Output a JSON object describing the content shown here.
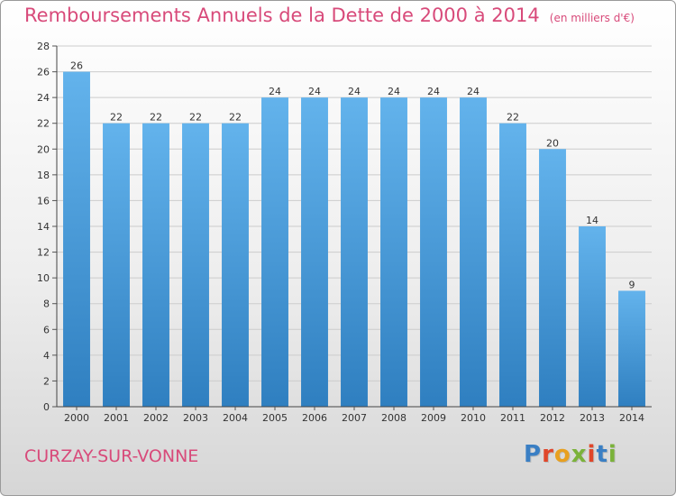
{
  "header": {
    "title": "Remboursements Annuels de la Dette de 2000 à 2014",
    "subtitle": "(en milliers d'€)"
  },
  "footer": {
    "commune": "CURZAY-SUR-VONNE",
    "logo": {
      "text": "Proxiti",
      "colors": [
        "#3a7fc4",
        "#e0462a",
        "#e8a020",
        "#7bb23a",
        "#e0462a",
        "#3a7fc4",
        "#7bb23a"
      ]
    }
  },
  "colors": {
    "bar_light": "#63b3ec",
    "bar_dark": "#2f7fc0",
    "title": "#d84a7a",
    "grid": "#cccccc"
  },
  "chart_data": {
    "type": "bar",
    "title": "Remboursements Annuels de la Dette de 2000 à 2014",
    "categories": [
      "2000",
      "2001",
      "2002",
      "2003",
      "2004",
      "2005",
      "2006",
      "2007",
      "2008",
      "2009",
      "2010",
      "2011",
      "2012",
      "2013",
      "2014"
    ],
    "values": [
      26,
      22,
      22,
      22,
      22,
      24,
      24,
      24,
      24,
      24,
      24,
      22,
      20,
      14,
      9
    ],
    "data_labels": [
      "26",
      "22",
      "22",
      "22",
      "22",
      "24",
      "24",
      "24",
      "24",
      "24",
      "24",
      "22",
      "20",
      "14",
      "9"
    ],
    "ylim": [
      0,
      28
    ],
    "yticks": [
      0,
      2,
      4,
      6,
      8,
      10,
      12,
      14,
      16,
      18,
      20,
      22,
      24,
      26,
      28
    ],
    "ytick_labels": [
      "0",
      "2",
      "4",
      "6",
      "8",
      "10",
      "12",
      "14",
      "16",
      "18",
      "20",
      "22",
      "24",
      "26",
      "28"
    ],
    "grid": true,
    "legend": false
  }
}
